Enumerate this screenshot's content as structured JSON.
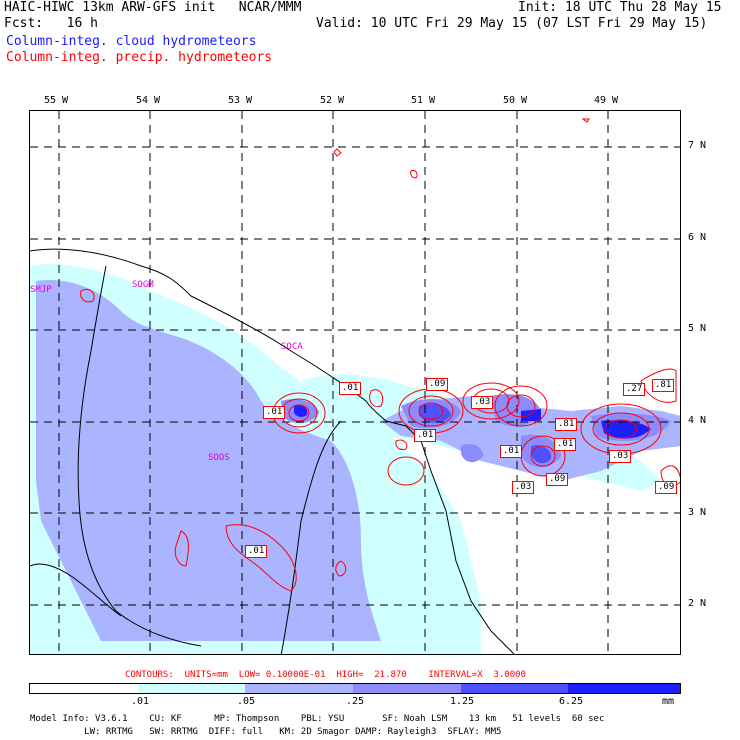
{
  "header": {
    "title_left": "HAIC-HIWC 13km ARW-GFS init   NCAR/MMM",
    "init": "Init: 18 UTC Thu 28 May 15",
    "fcst": "Fcst:   16 h",
    "valid": "Valid: 10 UTC Fri 29 May 15 (07 LST Fri 29 May 15)",
    "cloud_legend": "Column-integ. cloud hydrometeors",
    "precip_legend": "Column-integ. precip. hydrometeors"
  },
  "map": {
    "lon_labels": [
      "55 W",
      "54 W",
      "53 W",
      "52 W",
      "51 W",
      "50 W",
      "49 W"
    ],
    "lat_labels": [
      "7 N",
      "6 N",
      "5 N",
      "4 N",
      "3 N",
      "2 N"
    ],
    "stations": [
      "SMJP",
      "SOGM",
      "SOCA",
      "SOOS"
    ],
    "contour_labels": [
      ".01",
      ".01",
      ".09",
      ".03",
      ".81",
      ".01",
      ".01",
      ".01",
      ".03",
      ".09",
      ".03",
      ".27",
      ".81",
      ".09",
      ".01"
    ],
    "colors": {
      "fill1": "#cfffff",
      "fill2": "#aab4ff",
      "fill3": "#8c8cff",
      "fill4": "#5050ff",
      "fill5": "#1e1eff",
      "contour": "#ff0000"
    }
  },
  "contour_info": "CONTOURS:  UNITS=mm  LOW= 0.10000E-01  HIGH=  21.870    INTERVAL=X  3.0000",
  "colorbar": {
    "ticks": [
      ".01",
      ".05",
      ".25",
      "1.25",
      "6.25"
    ],
    "units": "mm",
    "colors": [
      "#ffffff",
      "#cfffff",
      "#aab4ff",
      "#8c8cff",
      "#5050ff",
      "#1e1eff"
    ]
  },
  "footer": {
    "line1": "Model Info: V3.6.1    CU: KF      MP: Thompson    PBL: YSU       SF: Noah LSM    13 km   51 levels  60 sec",
    "line2": "          LW: RRTMG   SW: RRTMG  DIFF: full   KM: 2D Smagor DAMP: Rayleigh3  SFLAY: MM5"
  }
}
